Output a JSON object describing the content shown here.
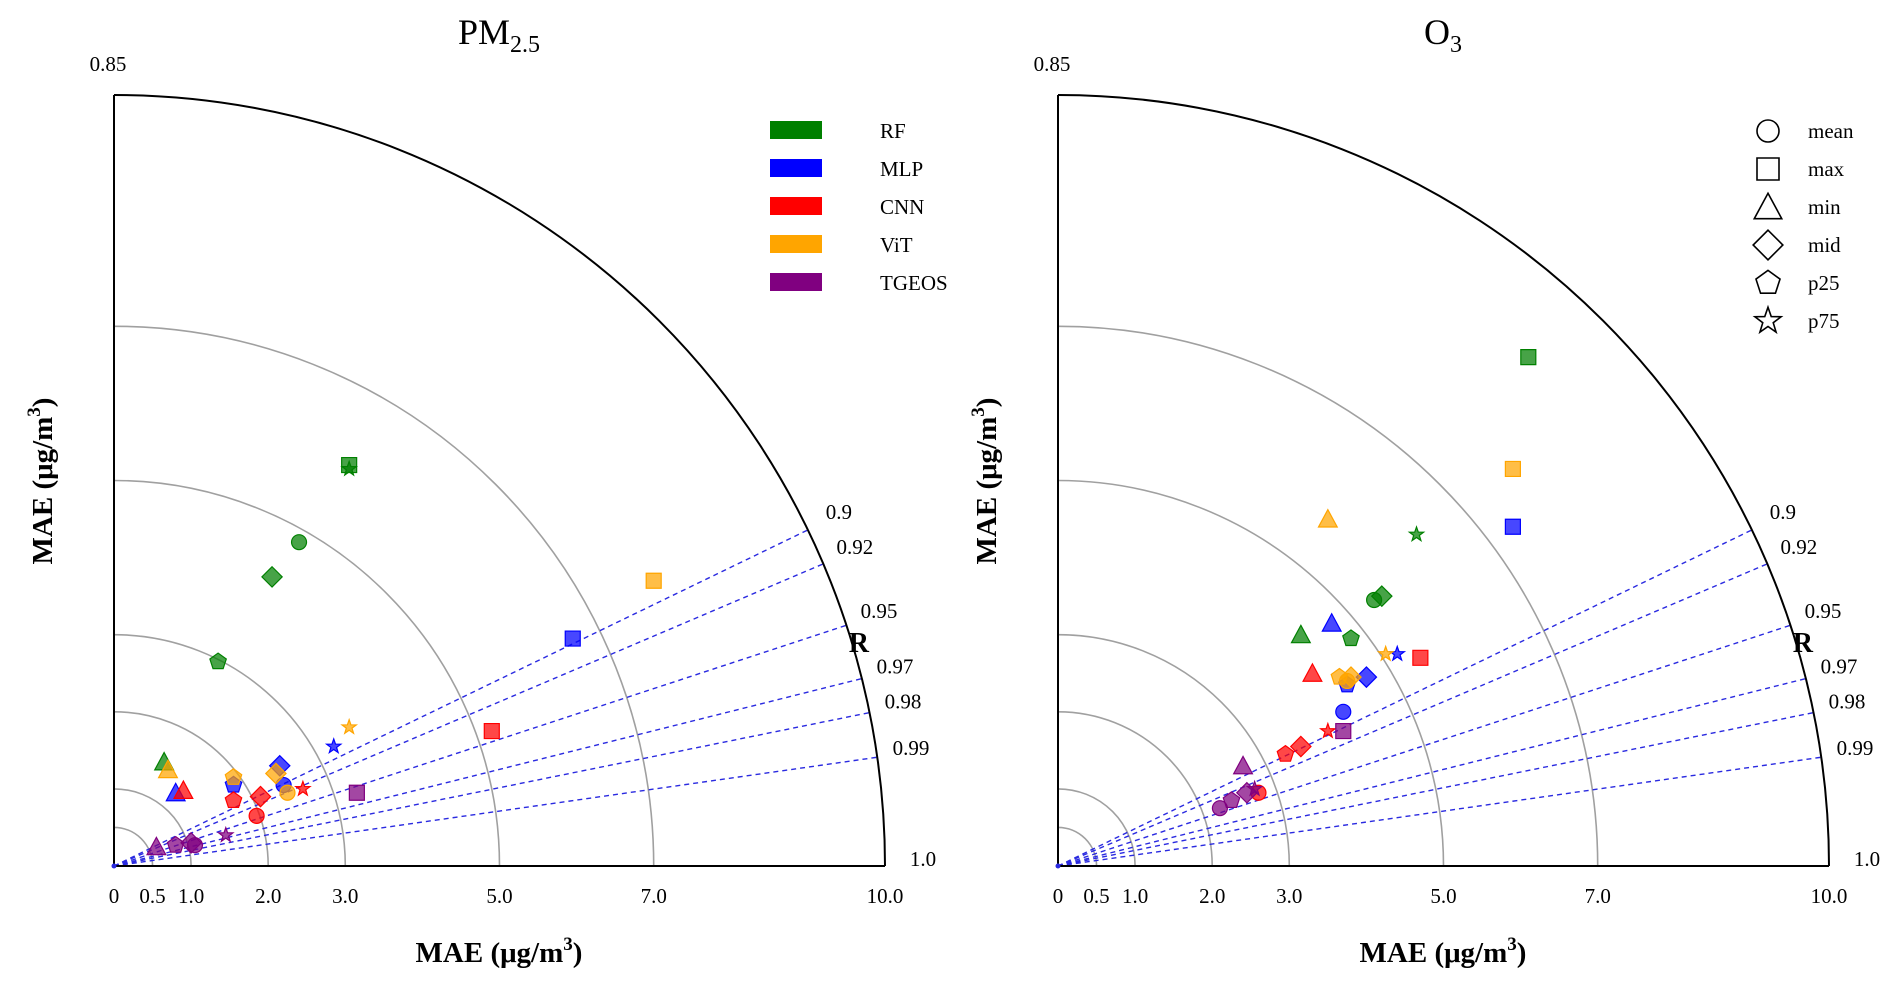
{
  "chart_data": [
    {
      "type": "scatter",
      "title": "PM",
      "title_sub": "2.5",
      "xlabel": "MAE (μg/m",
      "xlabel_sup": "3",
      "xlabel_close": ")",
      "ylabel": "MAE (μg/m",
      "ylabel_sup": "3",
      "ylabel_close": ")",
      "rlabel": "R",
      "rmax": 10,
      "radial_ticks": [
        "0",
        "0.5",
        "1.0",
        "2.0",
        "3.0",
        "5.0",
        "7.0",
        "10.0"
      ],
      "radial_tick_values": [
        0,
        0.5,
        1,
        2,
        3,
        5,
        7,
        10
      ],
      "arc_values": [
        0.5,
        1,
        2,
        3,
        5,
        7
      ],
      "correlation_ticks": [
        "0.85",
        "0.9",
        "0.92",
        "0.95",
        "0.97",
        "0.98",
        "0.99",
        "1.0"
      ],
      "correlation_values": [
        0.85,
        0.9,
        0.92,
        0.95,
        0.97,
        0.98,
        0.99,
        1.0
      ],
      "legend": {
        "position": "top-right",
        "entries": [
          {
            "label": "RF",
            "color": "#008000"
          },
          {
            "label": "MLP",
            "color": "#0000ff"
          },
          {
            "label": "CNN",
            "color": "#ff0000"
          },
          {
            "label": "ViT",
            "color": "#ffa500"
          },
          {
            "label": "TGEOS",
            "color": "#800080"
          }
        ]
      },
      "points": [
        {
          "model": "RF",
          "stat": "mean",
          "x": 2.4,
          "y": 4.2
        },
        {
          "model": "RF",
          "stat": "max",
          "x": 3.05,
          "y": 5.2
        },
        {
          "model": "RF",
          "stat": "min",
          "x": 0.65,
          "y": 1.35
        },
        {
          "model": "RF",
          "stat": "mid",
          "x": 2.05,
          "y": 3.75
        },
        {
          "model": "RF",
          "stat": "p25",
          "x": 1.35,
          "y": 2.65
        },
        {
          "model": "RF",
          "stat": "p75",
          "x": 3.05,
          "y": 5.15
        },
        {
          "model": "MLP",
          "stat": "mean",
          "x": 2.2,
          "y": 1.05
        },
        {
          "model": "MLP",
          "stat": "max",
          "x": 5.95,
          "y": 2.95
        },
        {
          "model": "MLP",
          "stat": "min",
          "x": 0.8,
          "y": 0.95
        },
        {
          "model": "MLP",
          "stat": "mid",
          "x": 2.15,
          "y": 1.3
        },
        {
          "model": "MLP",
          "stat": "p25",
          "x": 1.55,
          "y": 1.05
        },
        {
          "model": "MLP",
          "stat": "p75",
          "x": 2.85,
          "y": 1.55
        },
        {
          "model": "CNN",
          "stat": "mean",
          "x": 1.85,
          "y": 0.65
        },
        {
          "model": "CNN",
          "stat": "max",
          "x": 4.9,
          "y": 1.75
        },
        {
          "model": "CNN",
          "stat": "min",
          "x": 0.9,
          "y": 0.98
        },
        {
          "model": "CNN",
          "stat": "mid",
          "x": 1.9,
          "y": 0.9
        },
        {
          "model": "CNN",
          "stat": "p25",
          "x": 1.55,
          "y": 0.85
        },
        {
          "model": "CNN",
          "stat": "p75",
          "x": 2.45,
          "y": 1.0
        },
        {
          "model": "ViT",
          "stat": "mean",
          "x": 2.25,
          "y": 0.95
        },
        {
          "model": "ViT",
          "stat": "max",
          "x": 7.0,
          "y": 3.7
        },
        {
          "model": "ViT",
          "stat": "min",
          "x": 0.7,
          "y": 1.25
        },
        {
          "model": "ViT",
          "stat": "mid",
          "x": 2.1,
          "y": 1.2
        },
        {
          "model": "ViT",
          "stat": "p25",
          "x": 1.55,
          "y": 1.15
        },
        {
          "model": "ViT",
          "stat": "p75",
          "x": 3.05,
          "y": 1.8
        },
        {
          "model": "TGEOS",
          "stat": "mean",
          "x": 1.05,
          "y": 0.27
        },
        {
          "model": "TGEOS",
          "stat": "max",
          "x": 3.15,
          "y": 0.95
        },
        {
          "model": "TGEOS",
          "stat": "min",
          "x": 0.55,
          "y": 0.25
        },
        {
          "model": "TGEOS",
          "stat": "mid",
          "x": 1.0,
          "y": 0.3
        },
        {
          "model": "TGEOS",
          "stat": "p25",
          "x": 0.8,
          "y": 0.27
        },
        {
          "model": "TGEOS",
          "stat": "p75",
          "x": 1.45,
          "y": 0.4
        }
      ]
    },
    {
      "type": "scatter",
      "title": "O",
      "title_sub": "3",
      "xlabel": "MAE (μg/m",
      "xlabel_sup": "3",
      "xlabel_close": ")",
      "ylabel": "MAE (μg/m",
      "ylabel_sup": "3",
      "ylabel_close": ")",
      "rlabel": "R",
      "rmax": 10,
      "radial_ticks": [
        "0",
        "0.5",
        "1.0",
        "2.0",
        "3.0",
        "5.0",
        "7.0",
        "10.0"
      ],
      "radial_tick_values": [
        0,
        0.5,
        1,
        2,
        3,
        5,
        7,
        10
      ],
      "arc_values": [
        0.5,
        1,
        2,
        3,
        5,
        7
      ],
      "correlation_ticks": [
        "0.85",
        "0.9",
        "0.92",
        "0.95",
        "0.97",
        "0.98",
        "0.99",
        "1.0"
      ],
      "correlation_values": [
        0.85,
        0.9,
        0.92,
        0.95,
        0.97,
        0.98,
        0.99,
        1.0
      ],
      "legend": {
        "position": "top-right",
        "entries": [
          {
            "label": "mean",
            "marker": "circle"
          },
          {
            "label": "max",
            "marker": "square"
          },
          {
            "label": "min",
            "marker": "triangle"
          },
          {
            "label": "mid",
            "marker": "diamond"
          },
          {
            "label": "p25",
            "marker": "pentagon"
          },
          {
            "label": "p75",
            "marker": "star"
          }
        ]
      },
      "points": [
        {
          "model": "RF",
          "stat": "mean",
          "x": 4.1,
          "y": 3.45
        },
        {
          "model": "RF",
          "stat": "max",
          "x": 6.1,
          "y": 6.6
        },
        {
          "model": "RF",
          "stat": "min",
          "x": 3.15,
          "y": 3.0
        },
        {
          "model": "RF",
          "stat": "mid",
          "x": 4.2,
          "y": 3.5
        },
        {
          "model": "RF",
          "stat": "p25",
          "x": 3.8,
          "y": 2.95
        },
        {
          "model": "RF",
          "stat": "p75",
          "x": 4.65,
          "y": 4.3
        },
        {
          "model": "MLP",
          "stat": "mean",
          "x": 3.7,
          "y": 2.0
        },
        {
          "model": "MLP",
          "stat": "max",
          "x": 5.9,
          "y": 4.4
        },
        {
          "model": "MLP",
          "stat": "min",
          "x": 3.55,
          "y": 3.15
        },
        {
          "model": "MLP",
          "stat": "mid",
          "x": 4.0,
          "y": 2.45
        },
        {
          "model": "MLP",
          "stat": "p25",
          "x": 3.75,
          "y": 2.35
        },
        {
          "model": "MLP",
          "stat": "p75",
          "x": 4.4,
          "y": 2.75
        },
        {
          "model": "CNN",
          "stat": "mean",
          "x": 2.6,
          "y": 0.95
        },
        {
          "model": "CNN",
          "stat": "max",
          "x": 4.7,
          "y": 2.7
        },
        {
          "model": "CNN",
          "stat": "min",
          "x": 3.3,
          "y": 2.5
        },
        {
          "model": "CNN",
          "stat": "mid",
          "x": 3.15,
          "y": 1.55
        },
        {
          "model": "CNN",
          "stat": "p25",
          "x": 2.95,
          "y": 1.45
        },
        {
          "model": "CNN",
          "stat": "p75",
          "x": 3.5,
          "y": 1.75
        },
        {
          "model": "ViT",
          "stat": "mean",
          "x": 3.75,
          "y": 2.4
        },
        {
          "model": "ViT",
          "stat": "max",
          "x": 5.9,
          "y": 5.15
        },
        {
          "model": "ViT",
          "stat": "min",
          "x": 3.5,
          "y": 4.5
        },
        {
          "model": "ViT",
          "stat": "mid",
          "x": 3.8,
          "y": 2.45
        },
        {
          "model": "ViT",
          "stat": "p25",
          "x": 3.65,
          "y": 2.45
        },
        {
          "model": "ViT",
          "stat": "p75",
          "x": 4.25,
          "y": 2.75
        },
        {
          "model": "TGEOS",
          "stat": "mean",
          "x": 2.1,
          "y": 0.75
        },
        {
          "model": "TGEOS",
          "stat": "max",
          "x": 3.7,
          "y": 1.75
        },
        {
          "model": "TGEOS",
          "stat": "min",
          "x": 2.4,
          "y": 1.3
        },
        {
          "model": "TGEOS",
          "stat": "mid",
          "x": 2.45,
          "y": 0.95
        },
        {
          "model": "TGEOS",
          "stat": "p25",
          "x": 2.25,
          "y": 0.85
        },
        {
          "model": "TGEOS",
          "stat": "p75",
          "x": 2.55,
          "y": 1.0
        }
      ]
    }
  ],
  "colors": {
    "RF": "#008000",
    "MLP": "#0000ff",
    "CNN": "#ff0000",
    "ViT": "#ffa500",
    "TGEOS": "#800080",
    "correlation_line": "#2a2ae0",
    "arc": "#a0a0a0"
  }
}
